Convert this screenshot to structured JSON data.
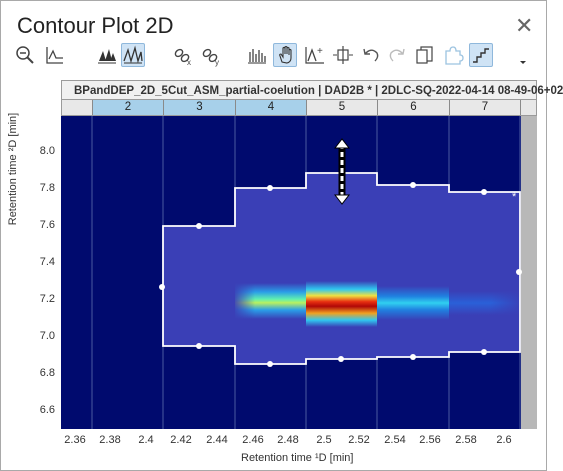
{
  "window": {
    "title": "Contour Plot 2D",
    "close_glyph": "✕"
  },
  "toolbar": {
    "items": [
      {
        "name": "zoom-out-icon",
        "active": false
      },
      {
        "name": "peak-baseline-icon",
        "active": false
      },
      {
        "name": "peaks-icon",
        "active": false
      },
      {
        "name": "peaks-outline-icon",
        "active": true
      },
      {
        "name": "unlink-x-icon",
        "active": false
      },
      {
        "name": "unlink-y-icon",
        "active": false
      },
      {
        "name": "spectrum-icon",
        "active": false
      },
      {
        "name": "hand-pan-icon",
        "active": true
      },
      {
        "name": "add-peak-icon",
        "active": false
      },
      {
        "name": "split-icon",
        "active": false
      },
      {
        "name": "undo-icon",
        "active": false
      },
      {
        "name": "redo-icon",
        "active": false
      },
      {
        "name": "copy-icon",
        "active": false
      },
      {
        "name": "puzzle-icon",
        "active": false
      },
      {
        "name": "step-icon",
        "active": true
      },
      {
        "name": "dropdown-icon",
        "active": false
      }
    ]
  },
  "header": {
    "text": "BPandDEP_2D_5Cut_ASM_partial-coelution | DAD2B * | 2DLC-SQ-2022-04-14 08-49-06+02"
  },
  "cuts": {
    "labels": [
      "",
      "2",
      "3",
      "4",
      "5",
      "6",
      "7",
      ""
    ],
    "selected": [
      1,
      2,
      3
    ]
  },
  "axes": {
    "ylabel": "Retention time ²D [min]",
    "xlabel": "Retention time ¹D [min]",
    "yticks": [
      "8.0",
      "7.8",
      "7.6",
      "7.4",
      "7.2",
      "7.0",
      "6.8",
      "6.6"
    ],
    "xticks": [
      "2.36",
      "2.38",
      "2.4",
      "2.42",
      "2.44",
      "2.46",
      "2.48",
      "2.5",
      "2.52",
      "2.54",
      "2.56",
      "2.58",
      "2.6"
    ]
  },
  "annotation": {
    "star": "*"
  },
  "colors": {
    "plot_bg": "#000a6e",
    "region": "#3a3fb6",
    "outline": "#ffffff",
    "sidebar": "#b8b8b8"
  }
}
